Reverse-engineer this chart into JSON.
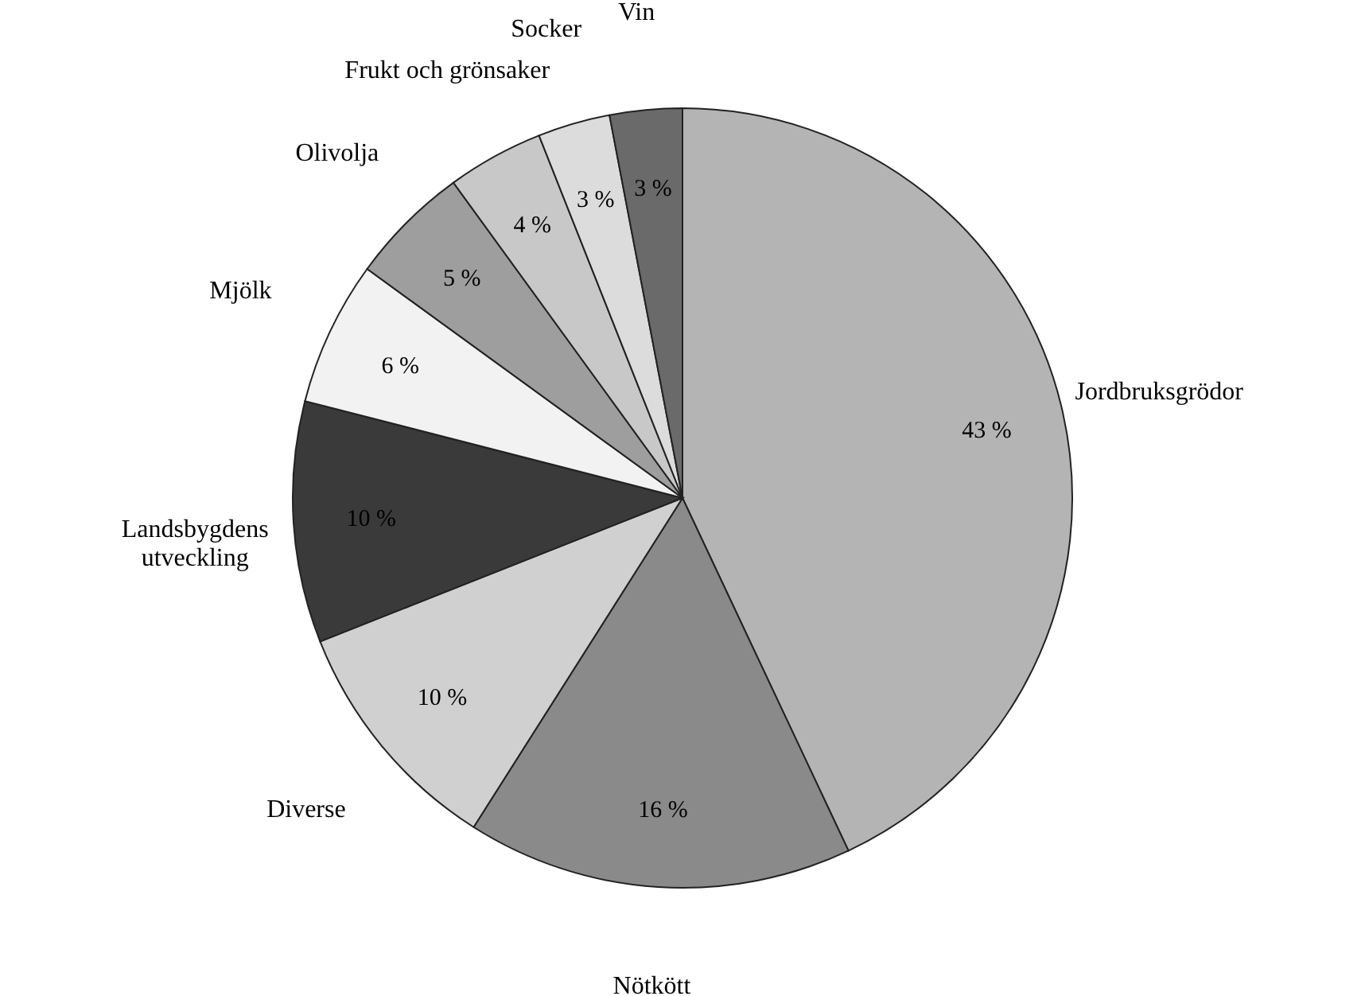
{
  "chart_data": {
    "type": "pie",
    "categories": [
      "Jordbruksgrödor",
      "Nötkött",
      "Diverse",
      "Landsbygdens\nutveckling",
      "Mjölk",
      "Olivolja",
      "Frukt och grönsaker",
      "Socker",
      "Vin"
    ],
    "values": [
      43,
      16,
      10,
      10,
      6,
      5,
      4,
      3,
      3
    ],
    "value_labels": [
      "43 %",
      "16 %",
      "10 %",
      "10 %",
      "6 %",
      "5 %",
      "4 %",
      "3 %",
      "3 %"
    ],
    "colors": [
      "#b4b4b4",
      "#8a8a8a",
      "#d0d0d0",
      "#3a3a3a",
      "#f2f2f2",
      "#9e9e9e",
      "#c8c8c8",
      "#dcdcdc",
      "#6a6a6a"
    ]
  }
}
